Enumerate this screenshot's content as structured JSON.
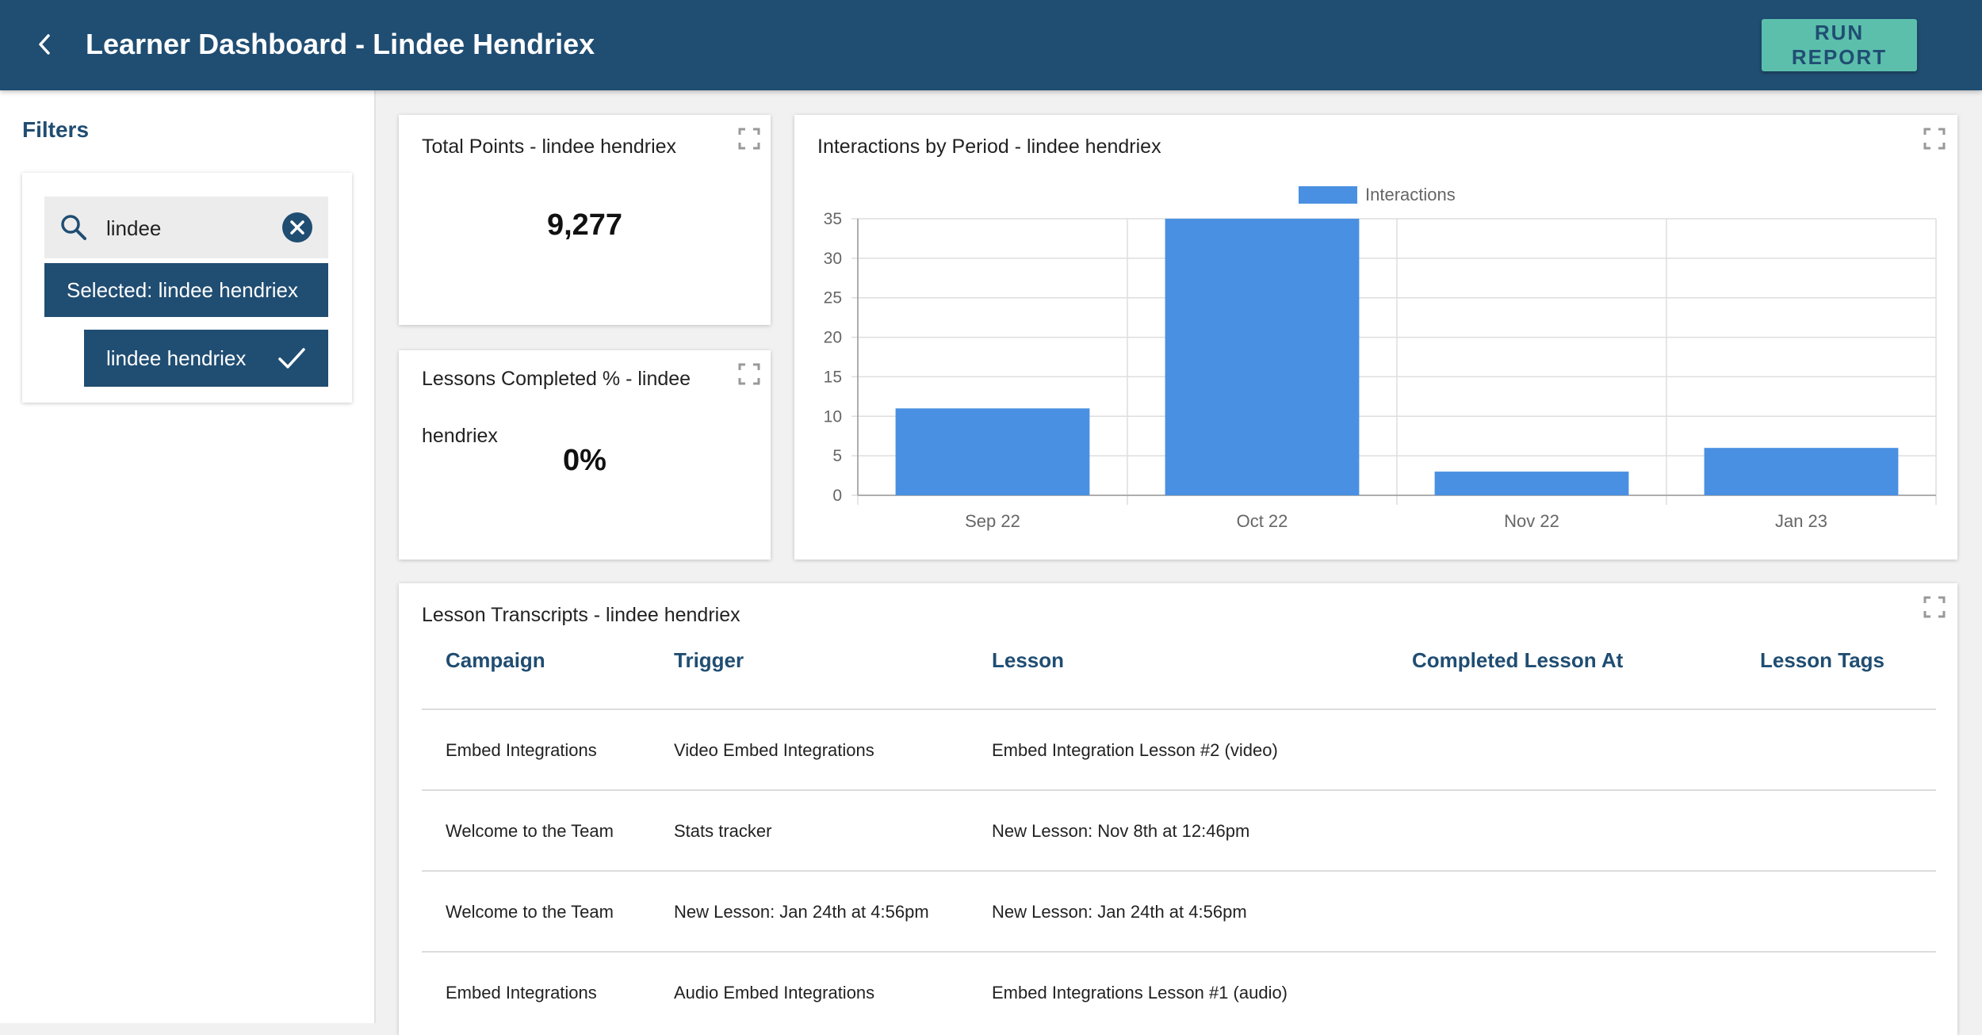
{
  "header": {
    "title": "Learner Dashboard - Lindee Hendriex",
    "run_report_label": "RUN REPORT"
  },
  "sidebar": {
    "filters_title": "Filters",
    "search_value": "lindee",
    "selected_label": "Selected: lindee hendriex",
    "options": [
      "lindee hendriex"
    ]
  },
  "cards": {
    "total_points": {
      "title": "Total Points - lindee hendriex",
      "value": "9,277"
    },
    "lessons_completed": {
      "title_line1": "Lessons Completed % - lindee",
      "title_line2": "hendriex",
      "value": "0%"
    },
    "interactions": {
      "title": "Interactions by Period - lindee hendriex"
    }
  },
  "chart_data": {
    "type": "bar",
    "title": "Interactions by Period - lindee hendriex",
    "categories": [
      "Sep 22",
      "Oct 22",
      "Nov 22",
      "Jan 23"
    ],
    "series": [
      {
        "name": "Interactions",
        "values": [
          11,
          35,
          3,
          6
        ],
        "color": "#4a90e2"
      }
    ],
    "ylim": [
      0,
      35
    ],
    "yticks": [
      0,
      5,
      10,
      15,
      20,
      25,
      30,
      35
    ],
    "legend": "top",
    "grid": true
  },
  "transcripts": {
    "title": "Lesson Transcripts - lindee hendriex",
    "columns": [
      "Campaign",
      "Trigger",
      "Lesson",
      "Completed Lesson At",
      "Lesson Tags"
    ],
    "rows": [
      {
        "campaign": "Embed Integrations",
        "trigger": "Video Embed Integrations",
        "lesson": "Embed Integration Lesson #2 (video)",
        "completed_at": "",
        "tags": ""
      },
      {
        "campaign": "Welcome to the Team",
        "trigger": "Stats tracker",
        "lesson": "New Lesson: Nov 8th at 12:46pm",
        "completed_at": "",
        "tags": ""
      },
      {
        "campaign": "Welcome to the Team",
        "trigger": "New Lesson: Jan 24th at 4:56pm",
        "lesson": "New Lesson: Jan 24th at 4:56pm",
        "completed_at": "",
        "tags": ""
      },
      {
        "campaign": "Embed Integrations",
        "trigger": "Audio Embed Integrations",
        "lesson": "Embed Integrations Lesson #1 (audio)",
        "completed_at": "",
        "tags": ""
      }
    ]
  },
  "colors": {
    "header_bg": "#204d72",
    "accent": "#5bbfac",
    "bar": "#4a90e2"
  }
}
